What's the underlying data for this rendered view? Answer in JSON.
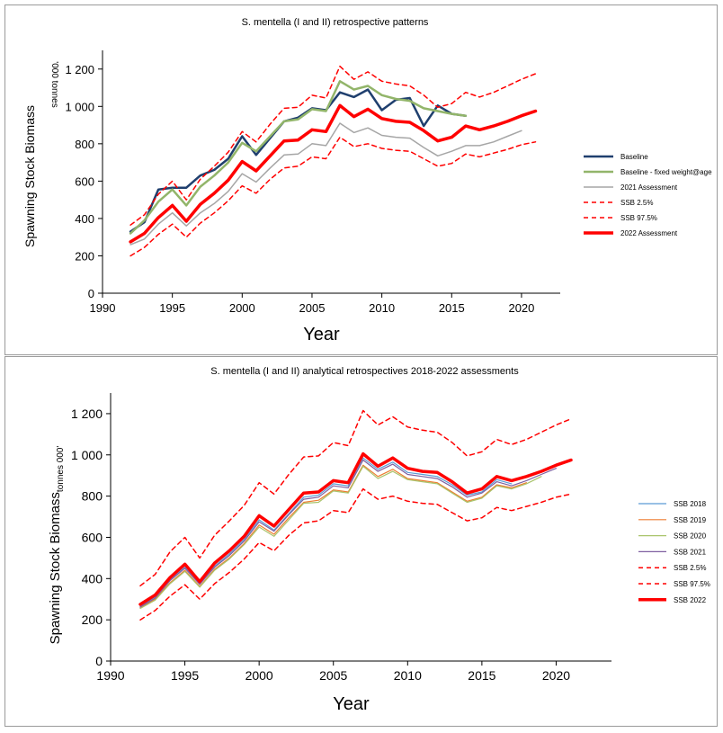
{
  "chart_data": [
    {
      "type": "line",
      "title": "S. mentella (I and II) retrospective patterns",
      "ylabel": "Spawning Stock Biomass",
      "yunit": "'000 tonnes",
      "xlabel": "Year",
      "xlim": [
        1990,
        2022
      ],
      "ylim": [
        0,
        1300
      ],
      "xticks": [
        1990,
        1995,
        2000,
        2005,
        2010,
        2015,
        2020
      ],
      "yticks": [
        0,
        200,
        400,
        600,
        800,
        1000,
        1200
      ],
      "ytick_labels": [
        "0",
        "200",
        "400",
        "600",
        "800",
        "1 000",
        "1 200"
      ],
      "legend_position": "right",
      "series": [
        {
          "name": "Baseline",
          "color": "#1f3f6e",
          "width": 2.5,
          "dash": "",
          "x": [
            1992,
            1993,
            1994,
            1995,
            1996,
            1997,
            1998,
            1999,
            2000,
            2001,
            2002,
            2003,
            2004,
            2005,
            2006,
            2007,
            2008,
            2009,
            2010,
            2011,
            2012,
            2013,
            2014,
            2015,
            2016
          ],
          "values": [
            330,
            380,
            555,
            565,
            565,
            630,
            660,
            720,
            840,
            740,
            830,
            920,
            940,
            990,
            980,
            1075,
            1050,
            1090,
            980,
            1035,
            1045,
            895,
            1005,
            960,
            950
          ]
        },
        {
          "name": "Baseline - fixed weight@age",
          "color": "#92b56a",
          "width": 2.5,
          "dash": "",
          "x": [
            1992,
            1993,
            1994,
            1995,
            1996,
            1997,
            1998,
            1999,
            2000,
            2001,
            2002,
            2003,
            2004,
            2005,
            2006,
            2007,
            2008,
            2009,
            2010,
            2011,
            2012,
            2013,
            2014,
            2015,
            2016
          ],
          "values": [
            320,
            390,
            490,
            555,
            470,
            570,
            630,
            700,
            805,
            760,
            840,
            920,
            930,
            985,
            975,
            1135,
            1090,
            1110,
            1060,
            1040,
            1030,
            990,
            975,
            960,
            950
          ]
        },
        {
          "name": "2021 Assessment",
          "color": "#a6a6a6",
          "width": 1.5,
          "dash": "",
          "x": [
            1992,
            1993,
            1994,
            1995,
            1996,
            1997,
            1998,
            1999,
            2000,
            2001,
            2002,
            2003,
            2004,
            2005,
            2006,
            2007,
            2008,
            2009,
            2010,
            2011,
            2012,
            2013,
            2014,
            2015,
            2016,
            2017,
            2018,
            2019,
            2020
          ],
          "values": [
            260,
            290,
            370,
            430,
            360,
            430,
            480,
            545,
            640,
            595,
            670,
            740,
            745,
            800,
            790,
            910,
            860,
            885,
            845,
            835,
            830,
            780,
            735,
            760,
            790,
            790,
            810,
            840,
            870
          ]
        },
        {
          "name": "SSB 2.5%",
          "color": "#ff0000",
          "width": 1.5,
          "dash": "5,4",
          "x": [
            1992,
            1993,
            1994,
            1995,
            1996,
            1997,
            1998,
            1999,
            2000,
            2001,
            2002,
            2003,
            2004,
            2005,
            2006,
            2007,
            2008,
            2009,
            2010,
            2011,
            2012,
            2013,
            2014,
            2015,
            2016,
            2017,
            2018,
            2019,
            2020,
            2021
          ],
          "values": [
            200,
            245,
            315,
            370,
            300,
            375,
            430,
            495,
            575,
            535,
            610,
            670,
            680,
            730,
            720,
            835,
            785,
            800,
            775,
            765,
            760,
            720,
            680,
            695,
            745,
            730,
            750,
            770,
            795,
            810
          ]
        },
        {
          "name": "SSB 97.5%",
          "color": "#ff0000",
          "width": 1.5,
          "dash": "5,4",
          "x": [
            1992,
            1993,
            1994,
            1995,
            1996,
            1997,
            1998,
            1999,
            2000,
            2001,
            2002,
            2003,
            2004,
            2005,
            2006,
            2007,
            2008,
            2009,
            2010,
            2011,
            2012,
            2013,
            2014,
            2015,
            2016,
            2017,
            2018,
            2019,
            2020,
            2021
          ],
          "values": [
            365,
            420,
            530,
            600,
            500,
            610,
            680,
            755,
            865,
            810,
            905,
            990,
            995,
            1060,
            1045,
            1215,
            1145,
            1185,
            1135,
            1120,
            1110,
            1060,
            995,
            1015,
            1075,
            1050,
            1075,
            1110,
            1145,
            1175
          ]
        },
        {
          "name": "2022 Assessment",
          "color": "#ff0000",
          "width": 3.5,
          "dash": "",
          "x": [
            1992,
            1993,
            1994,
            1995,
            1996,
            1997,
            1998,
            1999,
            2000,
            2001,
            2002,
            2003,
            2004,
            2005,
            2006,
            2007,
            2008,
            2009,
            2010,
            2011,
            2012,
            2013,
            2014,
            2015,
            2016,
            2017,
            2018,
            2019,
            2020,
            2021
          ],
          "values": [
            275,
            320,
            405,
            470,
            385,
            475,
            535,
            605,
            705,
            655,
            735,
            815,
            820,
            875,
            865,
            1005,
            945,
            985,
            935,
            920,
            915,
            870,
            815,
            835,
            895,
            875,
            895,
            920,
            950,
            975
          ]
        }
      ]
    },
    {
      "type": "line",
      "title": "S. mentella (I and II) analytical retrospectives 2018-2022 assessments",
      "ylabel": "Spawning Stock Biomass",
      "yunit": "tonnes 000'",
      "xlabel": "Year",
      "xlim": [
        1990,
        2023
      ],
      "ylim": [
        0,
        1300
      ],
      "xticks": [
        1990,
        1995,
        2000,
        2005,
        2010,
        2015,
        2020
      ],
      "yticks": [
        0,
        200,
        400,
        600,
        800,
        1000,
        1200
      ],
      "ytick_labels": [
        "0",
        "200",
        "400",
        "600",
        "800",
        "1 000",
        "1 200"
      ],
      "legend_position": "right",
      "series": [
        {
          "name": "SSB 2018",
          "color": "#5b9bd5",
          "width": 1.2,
          "dash": "",
          "x": [
            1992,
            1993,
            1994,
            1995,
            1996,
            1997,
            1998,
            1999,
            2000,
            2001,
            2002,
            2003,
            2004,
            2005,
            2006,
            2007,
            2008,
            2009,
            2010,
            2011,
            2012,
            2013,
            2014,
            2015,
            2016,
            2017
          ],
          "values": [
            265,
            310,
            395,
            455,
            375,
            460,
            520,
            590,
            685,
            635,
            715,
            795,
            805,
            860,
            850,
            985,
            930,
            965,
            915,
            905,
            895,
            855,
            805,
            820,
            880,
            860
          ]
        },
        {
          "name": "SSB 2019",
          "color": "#ed7d31",
          "width": 1.2,
          "dash": "",
          "x": [
            1992,
            1993,
            1994,
            1995,
            1996,
            1997,
            1998,
            1999,
            2000,
            2001,
            2002,
            2003,
            2004,
            2005,
            2006,
            2007,
            2008,
            2009,
            2010,
            2011,
            2012,
            2013,
            2014,
            2015,
            2016,
            2017,
            2018
          ],
          "values": [
            258,
            300,
            380,
            440,
            362,
            445,
            500,
            570,
            660,
            615,
            695,
            770,
            780,
            830,
            820,
            950,
            895,
            930,
            885,
            875,
            865,
            820,
            775,
            795,
            855,
            840,
            865
          ]
        },
        {
          "name": "SSB 2020",
          "color": "#a9c46c",
          "width": 1.2,
          "dash": "",
          "x": [
            1992,
            1993,
            1994,
            1995,
            1996,
            1997,
            1998,
            1999,
            2000,
            2001,
            2002,
            2003,
            2004,
            2005,
            2006,
            2007,
            2008,
            2009,
            2010,
            2011,
            2012,
            2013,
            2014,
            2015,
            2016,
            2017,
            2018,
            2019
          ],
          "values": [
            255,
            295,
            375,
            435,
            358,
            440,
            495,
            565,
            650,
            605,
            685,
            765,
            770,
            825,
            815,
            945,
            885,
            920,
            880,
            870,
            860,
            815,
            770,
            790,
            850,
            835,
            860,
            895
          ]
        },
        {
          "name": "SSB 2021",
          "color": "#7e5fa0",
          "width": 1.2,
          "dash": "",
          "x": [
            1992,
            1993,
            1994,
            1995,
            1996,
            1997,
            1998,
            1999,
            2000,
            2001,
            2002,
            2003,
            2004,
            2005,
            2006,
            2007,
            2008,
            2009,
            2010,
            2011,
            2012,
            2013,
            2014,
            2015,
            2016,
            2017,
            2018,
            2019,
            2020
          ],
          "values": [
            262,
            305,
            390,
            450,
            372,
            455,
            512,
            582,
            675,
            630,
            710,
            785,
            795,
            850,
            840,
            975,
            920,
            955,
            905,
            895,
            885,
            845,
            795,
            815,
            870,
            850,
            875,
            905,
            935
          ]
        },
        {
          "name": "SSB 2.5%",
          "color": "#ff0000",
          "width": 1.5,
          "dash": "5,4",
          "x": [
            1992,
            1993,
            1994,
            1995,
            1996,
            1997,
            1998,
            1999,
            2000,
            2001,
            2002,
            2003,
            2004,
            2005,
            2006,
            2007,
            2008,
            2009,
            2010,
            2011,
            2012,
            2013,
            2014,
            2015,
            2016,
            2017,
            2018,
            2019,
            2020,
            2021
          ],
          "values": [
            200,
            245,
            315,
            370,
            300,
            375,
            430,
            495,
            575,
            535,
            610,
            670,
            680,
            730,
            720,
            835,
            785,
            800,
            775,
            765,
            760,
            720,
            680,
            695,
            745,
            730,
            750,
            770,
            795,
            810
          ]
        },
        {
          "name": "SSB 97.5%",
          "color": "#ff0000",
          "width": 1.5,
          "dash": "5,4",
          "x": [
            1992,
            1993,
            1994,
            1995,
            1996,
            1997,
            1998,
            1999,
            2000,
            2001,
            2002,
            2003,
            2004,
            2005,
            2006,
            2007,
            2008,
            2009,
            2010,
            2011,
            2012,
            2013,
            2014,
            2015,
            2016,
            2017,
            2018,
            2019,
            2020,
            2021
          ],
          "values": [
            365,
            420,
            530,
            600,
            500,
            610,
            680,
            755,
            865,
            810,
            905,
            990,
            995,
            1060,
            1045,
            1215,
            1145,
            1185,
            1135,
            1120,
            1110,
            1060,
            995,
            1015,
            1075,
            1050,
            1075,
            1110,
            1145,
            1175
          ]
        },
        {
          "name": "SSB 2022",
          "color": "#ff0000",
          "width": 3.5,
          "dash": "",
          "x": [
            1992,
            1993,
            1994,
            1995,
            1996,
            1997,
            1998,
            1999,
            2000,
            2001,
            2002,
            2003,
            2004,
            2005,
            2006,
            2007,
            2008,
            2009,
            2010,
            2011,
            2012,
            2013,
            2014,
            2015,
            2016,
            2017,
            2018,
            2019,
            2020,
            2021
          ],
          "values": [
            275,
            320,
            405,
            470,
            385,
            475,
            535,
            605,
            705,
            655,
            735,
            815,
            820,
            875,
            865,
            1005,
            945,
            985,
            935,
            920,
            915,
            870,
            815,
            835,
            895,
            875,
            895,
            920,
            950,
            975
          ]
        }
      ]
    }
  ]
}
